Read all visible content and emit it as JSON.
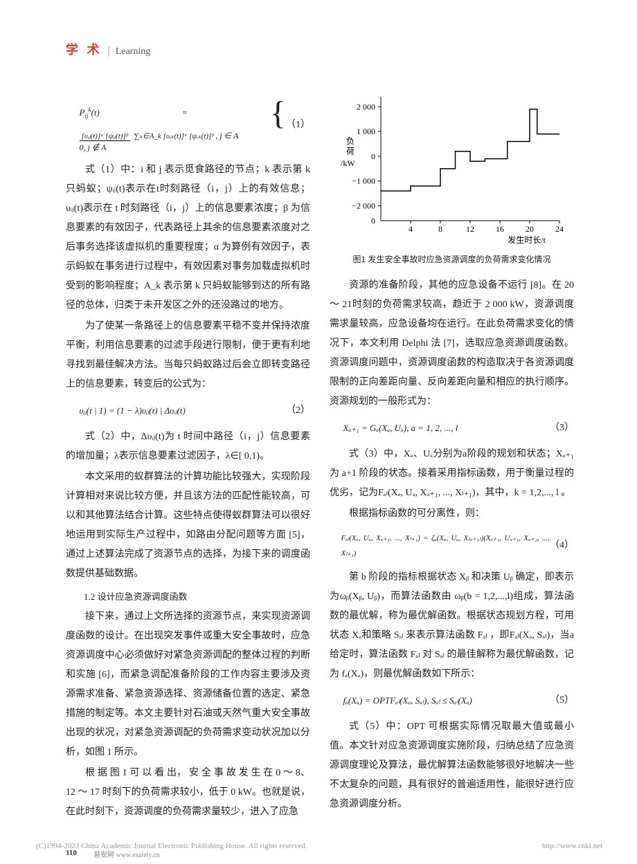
{
  "header": {
    "zh": "学 术",
    "divider": "|",
    "en": "Learning"
  },
  "equations": {
    "eq1_lhs": "P",
    "eq1_lhs_sub": "ij",
    "eq1_lhs_sup": "k",
    "eq1_lhs_t": "(t) =",
    "eq1_case1_num": "[υᵢⱼ(t)]ᵅ [ψᵢⱼ(t)]ᵝ",
    "eq1_case1_den": "∑ₖ∈A_k [υᵢₖ(t)]ᵅ [ψᵢₖ(t)]ᵝ",
    "eq1_case1_cond": ", j ∈ A",
    "eq1_case2": "0, j ∉ A",
    "eq1_num": "（1）",
    "eq2_body": "υᵢⱼ(t | 1) = (1 − λ)υᵢⱼ(t) | Δυᵢⱼ(t)",
    "eq2_num": "（2）",
    "eq3_body": "Xₐ₊₁ = Gₐ(Xₐ, Uₐ), a = 1, 2, ..., l",
    "eq3_num": "（3）",
    "eq4_body": "Fₐₗ(Xₐ, Uₐ, Xₐ₊₁, ..., Xₗ₊₁) = ζₐ(Xₐ, Uₐ, X₍ₐ₊₁₎)(Xₐ₊₁, Uₐ₊₁, Xₐ₊₂, ..., Xₗ₊₁)",
    "eq4_num": "（4）",
    "eq5_body": "fₐ(Xₐ) = OPTFₐₗ(Xₐ, Sₐₗ), Sₐₗ ≤ Sₐₗ(Xₐ)",
    "eq5_num": "（5）"
  },
  "paragraphs": {
    "p1": "式（1）中：i 和 j 表示觅食路径的节点；k 表示第 k 只蚂蚁；ψᵢⱼ(t)表示在t时刻路径（i，j）上的有效信息；υᵢⱼ(t)表示在 t 时刻路径（i，j）上的信息要素浓度；β 为信息要素的有效因子，代表路径上其余的信息要素浓度对之后事务选择该虚拟机的重要程度；α 为算例有效因子，表示蚂蚁在事务进行过程中，有效因素对事务加载虚拟机时受到的影响程度；A_k 表示第 k 只蚂蚁能够到达的所有路径的总体，归类于未开发区之外的还没路过的地方。",
    "p2": "为了使某一条路径上的信息要素平稳不变并保持浓度平衡，利用信息要素的过滤手段进行限制，便于更有利地寻找到最佳解决方法。当每只蚂蚁路过后会立即转变路径上的信息要素，转变后的公式为：",
    "p3": "式（2）中，Δυᵢⱼ(t)为 t 时间中路径（i，j）信息要素的增加量；λ表示信息要素过滤因子，λ∈[ 0,1)。",
    "p4": "本文采用的蚁群算法的计算功能比较强大，实现阶段计算相对来说比较方便，并且该方法的匹配性能较高，可以和其他算法结合计算。这些特点使得蚁群算法可以很好地运用到实际生产过程中，如路由分配问题等方面 [5]，通过上述算法完成了资源节点的选择，为接下来的调度函数提供基础数据。",
    "s12": "1.2 设计应急资源调度函数",
    "p5": "接下来，通过上文所选择的资源节点，来实现资源调度函数的设计。在出现突发事件或重大安全事故时，应急资源调度中心必须做好对紧急资源调配的整体过程的判断和实施 [6]，而紧急调配准备阶段的工作内容主要涉及资源需求准备、紧急资源选择、资源储备位置的选定、紧急措施的制定等。本文主要针对石油或天然气重大安全事故出现的状况，对紧急资源调配的负荷需求变动状况加以分析，如图 1 所示。",
    "p6": "根 据 图 1 可 以 看 出， 安 全 事 故 发 生 在 0 ～ 8、12 ～ 17 时刻下的负荷需求较小，低于 0 kW。也就是说，在此时刻下，资源调度的负荷需求量较少，进入了应急",
    "p7": "资源的准备阶段，其他的应急设备不运行 [8]。在 20 ～ 21时刻的负荷需求较高，趋近于 2 000 kW，资源调度需求量较高，应急设备均在运行。在此负荷需求变化的情况下，本文利用 Delphi 法 [7]，选取应急资源调度函数。资源调度问题中，资源调度函数的构造取决于各资源调度限制的正向差距向量、反向差距向量和相应的执行顺序。资源规划的一般形式为：",
    "p8": "式（3）中，Xₐ、Uₐ分别为a阶段的规划和状态；Xₐ₊₁为 a+1 阶段的状态。接着采用指标函数，用于衡量过程的优劣，记为Fₐₗ(Xₐ, Uₐ, Xₐ₊₁, ..., Xₗ₊₁)，其中，k = 1,2,..., l 。",
    "p9": "根据指标函数的可分离性，则：",
    "p10": "第 b 阶段的指标根据状态 Xᵦ 和决策 Uᵦ 确定，即表示为ωᵦ(Xᵦ, Uᵦ)，而算法函数由 ωᵦ(b = 1,2,...,l)组成，算法函数的最优解，称为最优解函数。根据状态规划方程，可用状态 Xₐ和策略 Sₐₗ 来表示算法函数 Fₐₗ ，即Fₐₗ(Xₐ, Sₐₗ)，当a给定时，算法函数 Fₐₗ 对 Sₐₗ 的最佳解称为最优解函数，记为 fₐ(Xₐ)，则最优解函数如下所示：",
    "p11": "式（5）中：OPT 可根据实际情况取最大值或最小值。本文针对应急资源调度实施阶段，归纳总结了应急资源调度理论及算法，最优解算法函数能够很好地解决一些不太复杂的问题，具有很好的普遍适用性，能很好进行应急资源调度分析。"
  },
  "chart": {
    "caption": "图1 发生安全事故时应急资源调度的负荷需求变化情况",
    "ylabel_line1": "负",
    "ylabel_line2": "荷",
    "ylabel_unit": "/kW",
    "xlabel": "发生时长/t",
    "yticks": [
      -2000,
      -1000,
      0,
      1000,
      2000
    ],
    "ytick_labels": [
      "−2 000",
      "−1 000",
      "0",
      "1 000",
      "2 000"
    ],
    "ylim": [
      -2600,
      2400
    ],
    "extra_y_zero": "0",
    "xticks": [
      4,
      8,
      12,
      16,
      20,
      24
    ],
    "xlim": [
      0,
      24
    ],
    "step_x": [
      0,
      4,
      4,
      8,
      8,
      10,
      10,
      12,
      12,
      14,
      14,
      17,
      17,
      20,
      20,
      21,
      21,
      24
    ],
    "step_y": [
      -1400,
      -1400,
      -1200,
      -1200,
      -500,
      -500,
      200,
      200,
      -200,
      -200,
      -100,
      -100,
      600,
      600,
      1900,
      1900,
      900,
      900
    ],
    "line_color": "#000000",
    "axis_color": "#000000",
    "background": "#ffffff",
    "line_width": 1.5,
    "font_size": 12
  },
  "footer": {
    "page": "110",
    "site": "易安网 www.esafety.cn",
    "copyright": "(C)1994-2023 China Academic Journal Electronic Publishing House. All rights reserved.",
    "cnki": "http://www.cnki.net"
  }
}
